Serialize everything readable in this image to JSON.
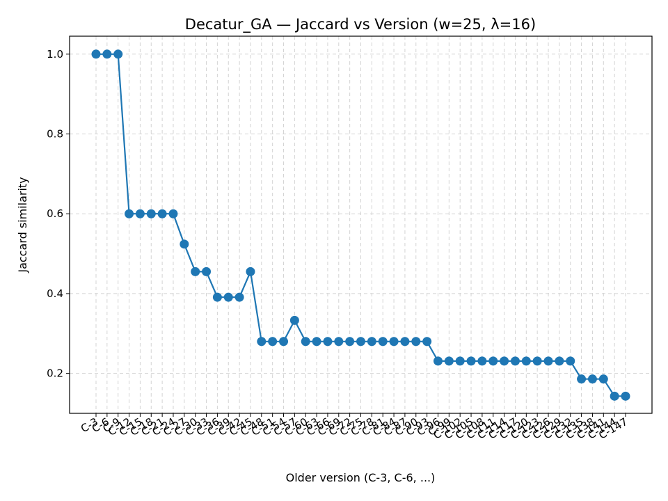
{
  "chart_data": {
    "type": "line",
    "title": "Decatur_GA — Jaccard vs Version (w=25, λ=16)",
    "xlabel": "Older version (C-3, C-6, ...)",
    "ylabel": "Jaccard similarity",
    "categories": [
      "C-3",
      "C-6",
      "C-9",
      "C-12",
      "C-15",
      "C-18",
      "C-21",
      "C-24",
      "C-27",
      "C-30",
      "C-33",
      "C-36",
      "C-39",
      "C-42",
      "C-45",
      "C-48",
      "C-51",
      "C-54",
      "C-57",
      "C-60",
      "C-63",
      "C-66",
      "C-69",
      "C-72",
      "C-75",
      "C-78",
      "C-81",
      "C-84",
      "C-87",
      "C-90",
      "C-93",
      "C-96",
      "C-99",
      "C-102",
      "C-105",
      "C-108",
      "C-111",
      "C-114",
      "C-117",
      "C-120",
      "C-123",
      "C-126",
      "C-129",
      "C-132",
      "C-135",
      "C-138",
      "C-141",
      "C-144",
      "C-147"
    ],
    "series": [
      {
        "values": [
          1.0,
          1.0,
          1.0,
          0.6,
          0.6,
          0.6,
          0.6,
          0.6,
          0.524,
          0.455,
          0.455,
          0.391,
          0.391,
          0.391,
          0.455,
          0.28,
          0.28,
          0.28,
          0.333,
          0.28,
          0.28,
          0.28,
          0.28,
          0.28,
          0.28,
          0.28,
          0.28,
          0.28,
          0.28,
          0.28,
          0.28,
          0.231,
          0.231,
          0.231,
          0.231,
          0.231,
          0.231,
          0.231,
          0.231,
          0.231,
          0.231,
          0.231,
          0.231,
          0.231,
          0.186,
          0.186,
          0.186,
          0.143,
          0.143
        ],
        "color": "#1f77b4"
      }
    ],
    "yticks": [
      0.2,
      0.4,
      0.6,
      0.8,
      1.0
    ],
    "ylim": [
      0.1,
      1.045
    ],
    "grid": true,
    "legend": "none"
  }
}
